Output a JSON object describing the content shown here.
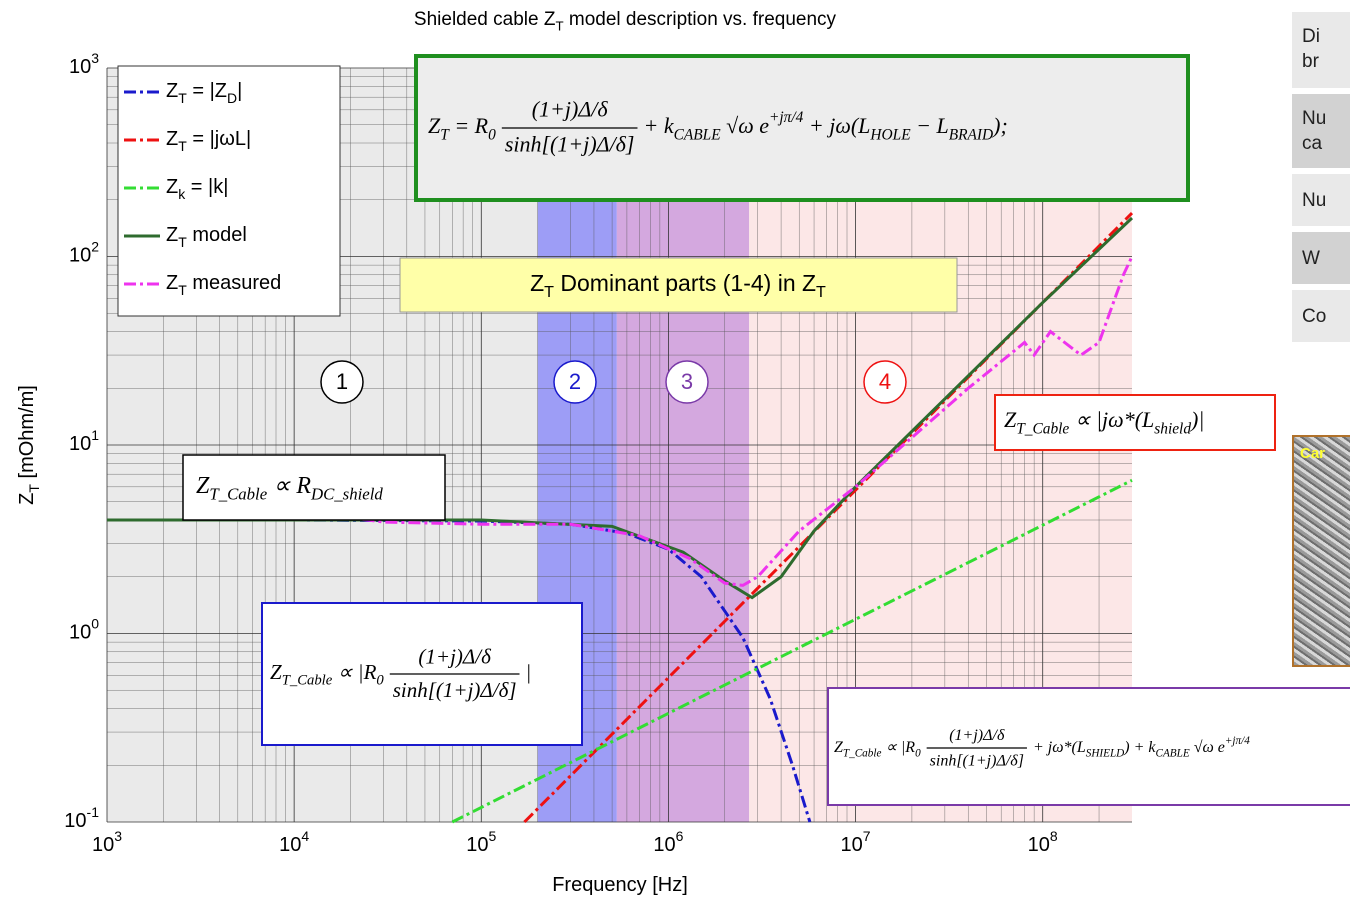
{
  "chart_data": {
    "type": "line",
    "title": "Shielded cable Z_{T} model description vs. frequency",
    "xlabel": "Frequency [Hz]",
    "ylabel": "Z_{T} [mOhm/m]",
    "xscale": "log",
    "yscale": "log",
    "xlim": [
      1000,
      300000000
    ],
    "ylim": [
      0.1,
      1000
    ],
    "xticks": [
      {
        "value": 1000,
        "label": "10^{3}"
      },
      {
        "value": 10000,
        "label": "10^{4}"
      },
      {
        "value": 100000,
        "label": "10^{5}"
      },
      {
        "value": 1000000,
        "label": "10^{6}"
      },
      {
        "value": 10000000,
        "label": "10^{7}"
      },
      {
        "value": 100000000,
        "label": "10^{8}"
      }
    ],
    "yticks": [
      {
        "value": 0.1,
        "label": "10^{-1}"
      },
      {
        "value": 1,
        "label": "10^{0}"
      },
      {
        "value": 10,
        "label": "10^{1}"
      },
      {
        "value": 100,
        "label": "10^{2}"
      },
      {
        "value": 1000,
        "label": "10^{3}"
      }
    ],
    "grid": true,
    "legend": "upper left",
    "regions": [
      {
        "from": 1000,
        "to": 200000,
        "color": "#e6e6e6"
      },
      {
        "from": 200000,
        "to": 530000,
        "color": "#8c8cf5"
      },
      {
        "from": 530000,
        "to": 2700000,
        "color": "#cc99d9"
      },
      {
        "from": 2700000,
        "to": 300000000,
        "color": "#fbe3e3"
      }
    ],
    "series": [
      {
        "name": "Z_{T} = |Z_{D}|",
        "color": "#1a1acc",
        "dash": "dashdot",
        "x": [
          1000,
          10000,
          100000,
          300000,
          600000,
          1000000,
          1500000,
          2500000,
          3500000,
          4600000,
          5700000
        ],
        "values": [
          4,
          4,
          3.95,
          3.8,
          3.4,
          2.8,
          2.0,
          0.95,
          0.45,
          0.2,
          0.1
        ]
      },
      {
        "name": "Z_{T} = |jωL|",
        "color": "#ee1111",
        "dash": "dashdot",
        "x": [
          170000,
          300000000
        ],
        "values": [
          0.1,
          170
        ]
      },
      {
        "name": "Z_{k} = |k|",
        "color": "#33dd33",
        "dash": "dashdot",
        "x": [
          70000,
          300000000
        ],
        "values": [
          0.1,
          6.5
        ]
      },
      {
        "name": "Z_{T} model",
        "color": "#2e6b2e",
        "dash": "solid",
        "x": [
          1000,
          10000,
          100000,
          500000,
          1200000,
          2000000,
          2800000,
          4000000,
          6000000,
          10000000,
          100000000,
          300000000
        ],
        "values": [
          4,
          4,
          4,
          3.7,
          2.7,
          1.9,
          1.55,
          2,
          3.5,
          6,
          57,
          160
        ]
      },
      {
        "name": "Z_{T} measured",
        "color": "#ee33ee",
        "dash": "dashdot",
        "x": [
          10000,
          30000,
          100000,
          300000,
          700000,
          1300000,
          2000000,
          2500000,
          3000000,
          5000000,
          10000000,
          40000000,
          80000000,
          90000000,
          110000000,
          160000000,
          200000000,
          270000000,
          300000000
        ],
        "values": [
          4.5,
          3.9,
          3.8,
          3.8,
          3.3,
          2.5,
          1.85,
          1.8,
          2,
          3.5,
          6,
          20,
          35,
          30,
          40,
          30,
          35,
          80,
          100
        ]
      }
    ],
    "zone_label": "Z_{T} Dominant parts (1-4) in Z_{T}",
    "zone_markers": [
      {
        "label": "1",
        "color": "#000000"
      },
      {
        "label": "2",
        "color": "#1a1acc"
      },
      {
        "label": "3",
        "color": "#7a3aa8"
      },
      {
        "label": "4",
        "color": "#ee1111"
      }
    ],
    "formulas": {
      "main": {
        "lhs": "Z_{T} = R_{0}",
        "num": "(1+j)Δ/δ",
        "den": "sinh[(1+j)Δ/δ]",
        "rest": "+ k_{CABLE} √ω e^{+jπ/4} + jω(L_{HOLE} − L_{BRAID});"
      },
      "dc": "Z_{T_Cable} ∝ R_{DC_shield}",
      "inductive": "Z_{T_Cable} ∝ |jω*(L_{shield})|",
      "diffusion": {
        "lhs": "Z_{T_Cable} ∝ |R_{0}",
        "num": "(1+j)Δ/δ",
        "den": "sinh[(1+j)Δ/δ]",
        "rest": "|"
      },
      "combined": {
        "lhs": "Z_{T_Cable} ∝ |R_{0}",
        "num": "(1+j)Δ/δ",
        "den": "sinh[(1+j)Δ/δ]",
        "rest": "+ jω*(L_{SHIELD}) + k_{CABLE} √ω e^{+jπ/4}"
      }
    }
  },
  "side_table": {
    "rows": [
      [
        "Di",
        "br"
      ],
      [
        "Nu",
        "ca"
      ],
      [
        "Nu"
      ],
      [
        "W"
      ],
      [
        "Co"
      ]
    ]
  },
  "photo_caption": "Car"
}
